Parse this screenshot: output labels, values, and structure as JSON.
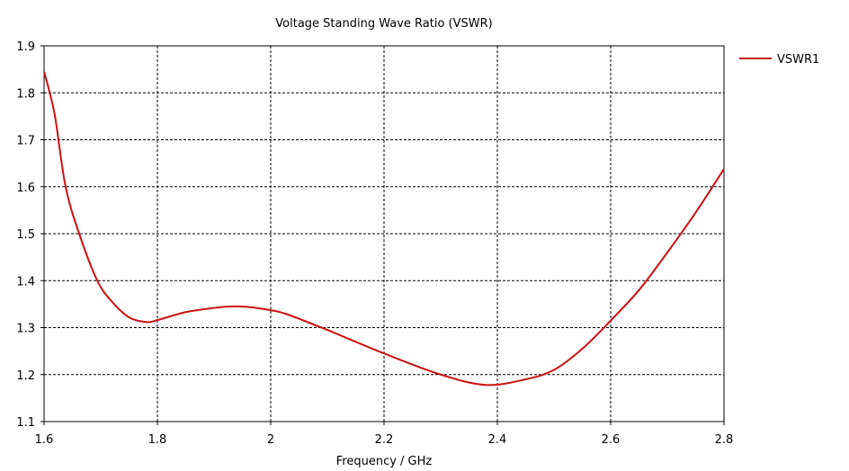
{
  "chart_data": {
    "type": "line",
    "title": "Voltage Standing Wave Ratio (VSWR)",
    "xlabel": "Frequency / GHz",
    "ylabel": "",
    "xlim": [
      1.6,
      2.8
    ],
    "ylim": [
      1.1,
      1.9
    ],
    "xticks": [
      "1.6",
      "1.8",
      "2",
      "2.2",
      "2.4",
      "2.6",
      "2.8"
    ],
    "yticks": [
      "1.1",
      "1.2",
      "1.3",
      "1.4",
      "1.5",
      "1.6",
      "1.7",
      "1.8",
      "1.9"
    ],
    "grid": true,
    "legend": "top-right",
    "series": [
      {
        "name": "VSWR1",
        "color": "#cc1111",
        "x": [
          1.6,
          1.61,
          1.62,
          1.638,
          1.662,
          1.694,
          1.72,
          1.75,
          1.78,
          1.8,
          1.85,
          1.9,
          1.93,
          1.96,
          2.0,
          2.03,
          2.1,
          2.2,
          2.3,
          2.38,
          2.45,
          2.5,
          2.55,
          2.6,
          2.65,
          2.7,
          2.75,
          2.8
        ],
        "y": [
          1.845,
          1.8,
          1.745,
          1.6,
          1.5,
          1.4,
          1.355,
          1.322,
          1.312,
          1.316,
          1.333,
          1.342,
          1.345,
          1.344,
          1.337,
          1.328,
          1.295,
          1.245,
          1.2,
          1.178,
          1.19,
          1.21,
          1.255,
          1.315,
          1.38,
          1.46,
          1.545,
          1.638
        ]
      }
    ]
  }
}
